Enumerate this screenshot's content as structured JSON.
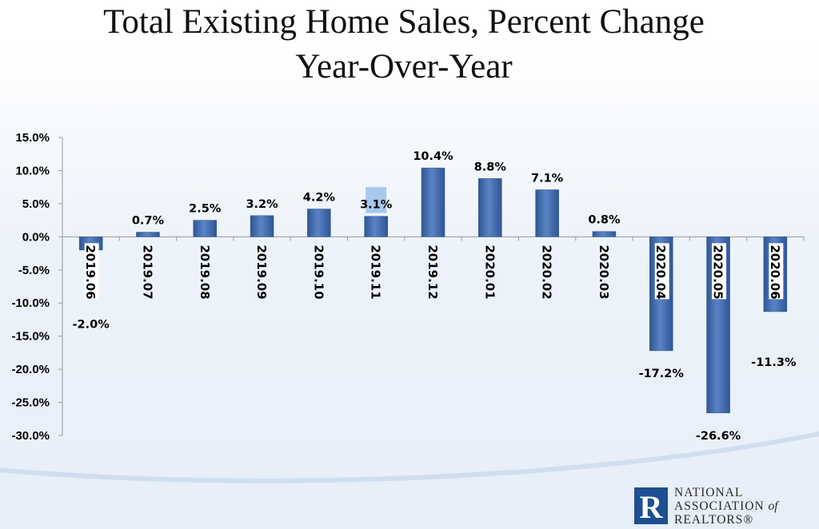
{
  "chart_data": {
    "type": "bar",
    "title": "Total Existing Home Sales, Percent Change",
    "subtitle": "Year-Over-Year",
    "categories": [
      "2019.06",
      "2019.07",
      "2019.08",
      "2019.09",
      "2019.10",
      "2019.11",
      "2019.12",
      "2020.01",
      "2020.02",
      "2020.03",
      "2020.04",
      "2020.05",
      "2020.06"
    ],
    "values": [
      -2.0,
      0.7,
      2.5,
      3.2,
      4.2,
      3.1,
      10.4,
      8.8,
      7.1,
      0.8,
      -17.2,
      -26.6,
      -11.3
    ],
    "data_labels": [
      "-2.0%",
      "0.7%",
      "2.5%",
      "3.2%",
      "4.2%",
      "3.1%",
      "10.4%",
      "8.8%",
      "7.1%",
      "0.8%",
      "-17.2%",
      "-26.6%",
      "-11.3%"
    ],
    "ylim": [
      -30,
      15
    ],
    "y_ticks": [
      15,
      10,
      5,
      0,
      -5,
      -10,
      -15,
      -20,
      -25,
      -30
    ],
    "y_tick_labels": [
      "15.0%",
      "10.0%",
      "5.0%",
      "0.0%",
      "-5.0%",
      "-10.0%",
      "-15.0%",
      "-20.0%",
      "-25.0%",
      "-30.0%"
    ],
    "xlabel": "",
    "ylabel": "",
    "grid": false,
    "legend": "none",
    "colors": {
      "bar": "#4a72b5",
      "bar_dark": "#2f5594",
      "highlight": "#a9c8ee",
      "axis": "#9a9a9a"
    }
  },
  "logo": {
    "mark": "R",
    "line1": "NATIONAL",
    "line2": "ASSOCIATION",
    "line2_suffix": "of",
    "line3": "REALTORS®"
  }
}
